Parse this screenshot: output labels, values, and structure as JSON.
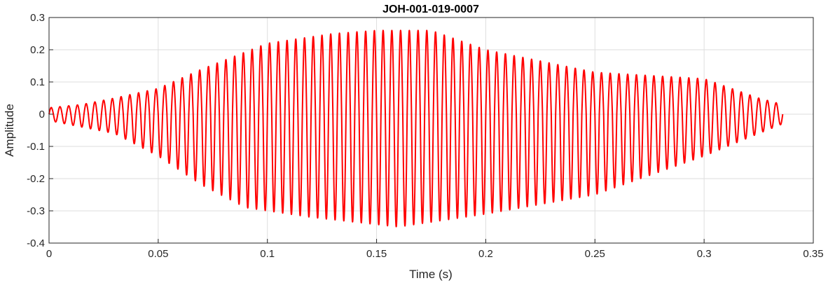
{
  "chart_data": {
    "type": "line",
    "title": "JOH-001-019-0007",
    "xlabel": "Time (s)",
    "ylabel": "Amplitude",
    "xlim": [
      0,
      0.35
    ],
    "ylim": [
      -0.4,
      0.3
    ],
    "x_ticks": [
      0,
      0.05,
      0.1,
      0.15,
      0.2,
      0.25,
      0.3,
      0.35
    ],
    "y_ticks": [
      -0.4,
      -0.3,
      -0.2,
      -0.1,
      0,
      0.1,
      0.2,
      0.3
    ],
    "x_tick_labels": [
      "0",
      "0.05",
      "0.1",
      "0.15",
      "0.2",
      "0.25",
      "0.3",
      "0.35"
    ],
    "y_tick_labels": [
      "-0.4",
      "-0.3",
      "-0.2",
      "-0.1",
      "0",
      "0.1",
      "0.2",
      "0.3"
    ],
    "grid": true,
    "line_color": "#ff0000",
    "series": [
      {
        "duration": 0.336,
        "oscillation_frequency_hz": 250,
        "envelope_positive": [
          [
            0,
            0.02
          ],
          [
            0.015,
            0.03
          ],
          [
            0.03,
            0.05
          ],
          [
            0.05,
            0.08
          ],
          [
            0.07,
            0.14
          ],
          [
            0.1,
            0.22
          ],
          [
            0.13,
            0.25
          ],
          [
            0.15,
            0.26
          ],
          [
            0.175,
            0.26
          ],
          [
            0.2,
            0.2
          ],
          [
            0.25,
            0.13
          ],
          [
            0.3,
            0.11
          ],
          [
            0.325,
            0.05
          ],
          [
            0.336,
            0.03
          ]
        ],
        "envelope_negative": [
          [
            0,
            -0.02
          ],
          [
            0.015,
            -0.04
          ],
          [
            0.03,
            -0.06
          ],
          [
            0.05,
            -0.13
          ],
          [
            0.07,
            -0.22
          ],
          [
            0.09,
            -0.29
          ],
          [
            0.12,
            -0.32
          ],
          [
            0.16,
            -0.35
          ],
          [
            0.18,
            -0.33
          ],
          [
            0.2,
            -0.31
          ],
          [
            0.25,
            -0.25
          ],
          [
            0.3,
            -0.13
          ],
          [
            0.325,
            -0.06
          ],
          [
            0.336,
            -0.03
          ]
        ]
      }
    ]
  }
}
